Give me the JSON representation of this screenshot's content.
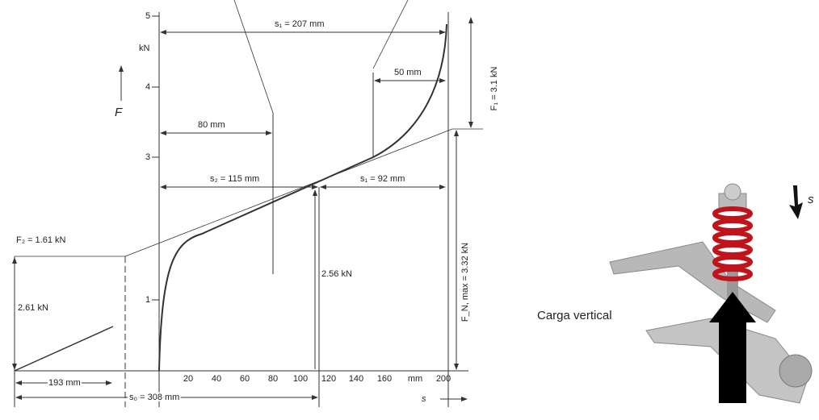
{
  "diagram": {
    "x_tick_labels": [
      "20",
      "40",
      "60",
      "80",
      "100",
      "120",
      "140",
      "160",
      "mm",
      "200"
    ],
    "y_tick_labels": [
      "5",
      "kN",
      "4",
      "3",
      "1"
    ],
    "axis_labels": {
      "force": "F",
      "travel": "s"
    },
    "dimensions": {
      "s1_total": "s₁ = 207 mm",
      "d50": "50 mm",
      "d80": "80 mm",
      "s2": "s₂ = 115 mm",
      "s1": "s₁ = 92 mm",
      "d193": "193 mm",
      "s0": "s₀ = 308 mm"
    },
    "forces": {
      "F2": "F₂ = 1.61 kN",
      "f261": "2.61 kN",
      "f256": "2.56 kN",
      "F1": "F₁ = 3.1 kN",
      "Fmax": "F_N, max = 3.32 kN"
    },
    "photo": {
      "travel": "s",
      "load": "Carga vertical"
    }
  }
}
